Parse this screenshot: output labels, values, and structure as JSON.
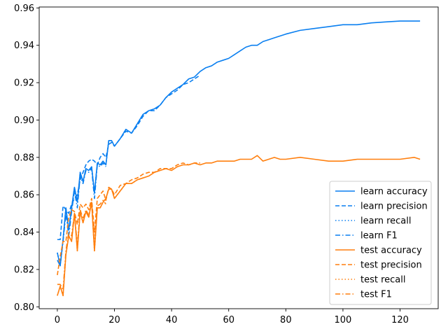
{
  "chart_data": {
    "type": "line",
    "title": "",
    "xlabel": "",
    "ylabel": "",
    "xlim": [
      -6.35,
      133.35
    ],
    "ylim": [
      0.799,
      0.9605
    ],
    "xticks": [
      0,
      20,
      40,
      60,
      80,
      100,
      120
    ],
    "yticks": [
      0.8,
      0.82,
      0.84,
      0.86,
      0.88,
      0.9,
      0.92,
      0.94,
      0.96
    ],
    "xtick_labels": [
      "0",
      "20",
      "40",
      "60",
      "80",
      "100",
      "120"
    ],
    "ytick_labels": [
      "0.80",
      "0.82",
      "0.84",
      "0.86",
      "0.88",
      "0.90",
      "0.92",
      "0.94",
      "0.96"
    ],
    "grid": false,
    "legend_position": "lower right",
    "colors": {
      "learn": "#0a7ff0",
      "test": "#ff7f0e"
    },
    "series": [
      {
        "name": "learn accuracy",
        "color": "#0a7ff0",
        "dash": "solid",
        "x": [
          0,
          1,
          2,
          3,
          4,
          5,
          6,
          7,
          8,
          9,
          10,
          11,
          12,
          13,
          14,
          15,
          16,
          17,
          18,
          19,
          20,
          22,
          24,
          26,
          28,
          30,
          32,
          34,
          36,
          38,
          40,
          42,
          44,
          46,
          48,
          50,
          52,
          54,
          56,
          58,
          60,
          62,
          64,
          66,
          68,
          70,
          72,
          74,
          76,
          78,
          80,
          85,
          90,
          95,
          100,
          105,
          110,
          115,
          120,
          125,
          127
        ],
        "y": [
          0.829,
          0.822,
          0.836,
          0.853,
          0.841,
          0.853,
          0.864,
          0.856,
          0.872,
          0.867,
          0.874,
          0.873,
          0.875,
          0.861,
          0.877,
          0.876,
          0.878,
          0.876,
          0.889,
          0.889,
          0.886,
          0.89,
          0.895,
          0.893,
          0.898,
          0.903,
          0.905,
          0.906,
          0.908,
          0.912,
          0.915,
          0.917,
          0.919,
          0.922,
          0.923,
          0.926,
          0.928,
          0.929,
          0.931,
          0.932,
          0.933,
          0.935,
          0.937,
          0.939,
          0.94,
          0.94,
          0.942,
          0.943,
          0.944,
          0.945,
          0.946,
          0.948,
          0.949,
          0.95,
          0.951,
          0.951,
          0.952,
          0.9525,
          0.953,
          0.953,
          0.953
        ]
      },
      {
        "name": "learn precision",
        "color": "#0a7ff0",
        "dash": "dashed",
        "x": [
          0,
          1,
          2,
          3,
          4,
          5,
          6,
          7,
          8,
          9,
          10,
          11,
          12,
          13,
          14,
          15,
          16,
          17,
          18,
          19,
          20,
          22,
          24,
          26,
          28,
          30,
          32,
          34,
          36,
          38,
          40,
          42,
          44,
          46,
          48,
          50
        ],
        "y": [
          0.836,
          0.836,
          0.854,
          0.852,
          0.85,
          0.855,
          0.858,
          0.86,
          0.868,
          0.872,
          0.876,
          0.878,
          0.879,
          0.878,
          0.876,
          0.88,
          0.882,
          0.88,
          0.887,
          0.888,
          0.886,
          0.89,
          0.894,
          0.893,
          0.897,
          0.902,
          0.905,
          0.905,
          0.908,
          0.912,
          0.914,
          0.916,
          0.919,
          0.92,
          0.922,
          0.924
        ]
      },
      {
        "name": "learn recall",
        "color": "#0a7ff0",
        "dash": "dotted",
        "x": [
          0,
          1,
          2,
          3,
          4,
          5,
          6,
          7,
          8,
          9,
          10,
          11,
          12,
          13,
          14,
          15,
          16,
          17,
          18,
          19,
          20,
          22,
          24,
          26,
          28,
          30
        ],
        "y": [
          0.829,
          0.822,
          0.836,
          0.853,
          0.841,
          0.853,
          0.864,
          0.856,
          0.872,
          0.867,
          0.874,
          0.873,
          0.875,
          0.861,
          0.877,
          0.876,
          0.878,
          0.876,
          0.889,
          0.889,
          0.886,
          0.89,
          0.895,
          0.893,
          0.898,
          0.903
        ]
      },
      {
        "name": "learn F1",
        "color": "#0a7ff0",
        "dash": "dashdot",
        "x": [
          0,
          1,
          2,
          3,
          4,
          5,
          6,
          7,
          8,
          9,
          10,
          11,
          12,
          13,
          14,
          15,
          16,
          17
        ],
        "y": [
          0.825,
          0.822,
          0.835,
          0.85,
          0.838,
          0.851,
          0.862,
          0.853,
          0.87,
          0.866,
          0.873,
          0.872,
          0.874,
          0.858,
          0.876,
          0.875,
          0.877,
          0.875
        ]
      },
      {
        "name": "test accuracy",
        "color": "#ff7f0e",
        "dash": "solid",
        "x": [
          0,
          1,
          2,
          3,
          4,
          5,
          6,
          7,
          8,
          9,
          10,
          11,
          12,
          13,
          14,
          15,
          16,
          17,
          18,
          19,
          20,
          22,
          24,
          26,
          28,
          30,
          32,
          34,
          36,
          38,
          40,
          42,
          44,
          46,
          48,
          50,
          52,
          54,
          56,
          58,
          60,
          62,
          64,
          66,
          68,
          70,
          72,
          74,
          76,
          78,
          80,
          85,
          90,
          95,
          100,
          105,
          110,
          115,
          120,
          125,
          127
        ],
        "y": [
          0.806,
          0.811,
          0.806,
          0.828,
          0.838,
          0.835,
          0.85,
          0.83,
          0.851,
          0.845,
          0.851,
          0.848,
          0.856,
          0.83,
          0.853,
          0.853,
          0.856,
          0.858,
          0.863,
          0.863,
          0.858,
          0.862,
          0.866,
          0.866,
          0.868,
          0.869,
          0.87,
          0.872,
          0.873,
          0.874,
          0.873,
          0.875,
          0.876,
          0.876,
          0.877,
          0.876,
          0.877,
          0.877,
          0.878,
          0.878,
          0.878,
          0.878,
          0.879,
          0.879,
          0.879,
          0.881,
          0.878,
          0.879,
          0.88,
          0.879,
          0.879,
          0.88,
          0.879,
          0.878,
          0.878,
          0.879,
          0.879,
          0.879,
          0.879,
          0.88,
          0.879
        ]
      },
      {
        "name": "test precision",
        "color": "#ff7f0e",
        "dash": "dashed",
        "x": [
          0,
          1,
          2,
          3,
          4,
          5,
          6,
          7,
          8,
          9,
          10,
          11,
          12,
          13,
          14,
          15,
          16,
          17,
          18,
          19,
          20,
          22,
          24,
          26,
          28,
          30,
          32,
          34,
          36,
          38,
          40,
          42,
          44,
          46,
          48,
          50
        ],
        "y": [
          0.817,
          0.827,
          0.835,
          0.835,
          0.848,
          0.852,
          0.851,
          0.844,
          0.855,
          0.853,
          0.855,
          0.852,
          0.858,
          0.84,
          0.858,
          0.86,
          0.862,
          0.857,
          0.864,
          0.863,
          0.86,
          0.865,
          0.866,
          0.868,
          0.869,
          0.871,
          0.872,
          0.872,
          0.874,
          0.874,
          0.874,
          0.876,
          0.877,
          0.876,
          0.877,
          0.877
        ]
      },
      {
        "name": "test recall",
        "color": "#ff7f0e",
        "dash": "dotted",
        "x": [
          0,
          1,
          2,
          3,
          4,
          5,
          6,
          7,
          8,
          9,
          10,
          11,
          12,
          13,
          14,
          15,
          16,
          17,
          18,
          19,
          20,
          22,
          24,
          26,
          28,
          30
        ],
        "y": [
          0.806,
          0.811,
          0.806,
          0.828,
          0.838,
          0.835,
          0.85,
          0.83,
          0.851,
          0.845,
          0.851,
          0.848,
          0.856,
          0.83,
          0.853,
          0.853,
          0.856,
          0.858,
          0.863,
          0.863,
          0.858,
          0.862,
          0.866,
          0.866,
          0.868,
          0.869
        ]
      },
      {
        "name": "test F1",
        "color": "#ff7f0e",
        "dash": "dashdot",
        "x": [
          0,
          1,
          2,
          3,
          4,
          5,
          6,
          7,
          8,
          9,
          10,
          11,
          12,
          13,
          14,
          15,
          16,
          17
        ],
        "y": [
          0.812,
          0.812,
          0.809,
          0.83,
          0.84,
          0.838,
          0.85,
          0.833,
          0.852,
          0.847,
          0.852,
          0.849,
          0.856,
          0.833,
          0.854,
          0.855,
          0.857,
          0.855
        ]
      }
    ]
  }
}
